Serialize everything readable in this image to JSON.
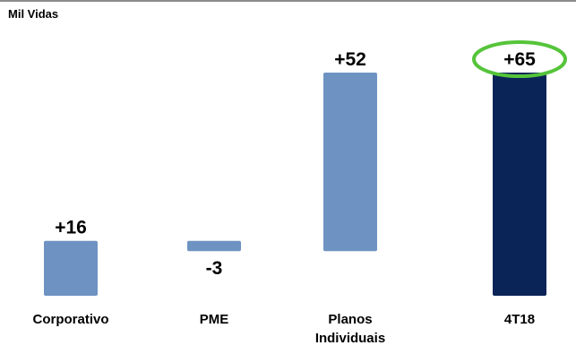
{
  "header": {
    "unit": "Mil Vidas"
  },
  "colors": {
    "increment_bar": "#6e93c2",
    "total_bar": "#0b2457",
    "highlight_ring": "#55c43a"
  },
  "chart_data": {
    "type": "bar",
    "subtype": "waterfall",
    "categories": [
      "Corporativo",
      "PME",
      "Planos Individuais",
      "4T18"
    ],
    "category_lines": [
      [
        "Corporativo"
      ],
      [
        "PME"
      ],
      [
        "Planos",
        "Individuais"
      ],
      [
        "4T18"
      ]
    ],
    "values": [
      16,
      -3,
      52,
      65
    ],
    "labels": [
      "+16",
      "-3",
      "+52",
      "+65"
    ],
    "is_total": [
      false,
      false,
      false,
      true
    ],
    "highlight_index": 3,
    "title": "",
    "xlabel": "",
    "ylabel": "Mil Vidas",
    "axes_visible": false,
    "grid": false,
    "legend": "none"
  }
}
